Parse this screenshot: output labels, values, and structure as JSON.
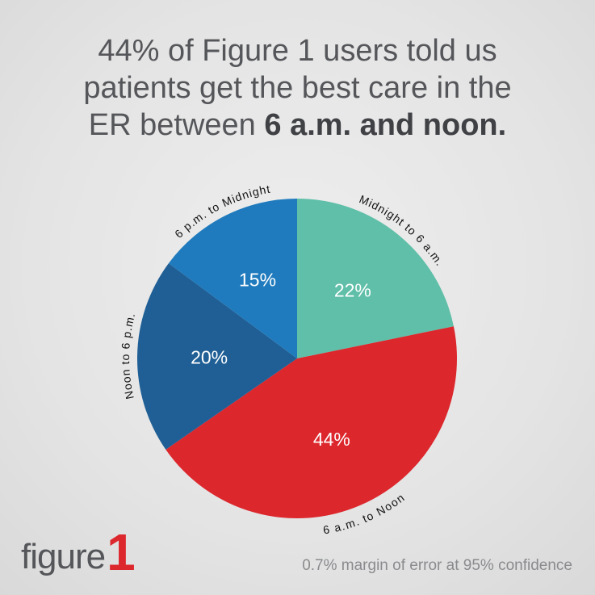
{
  "headline": {
    "line1": "44% of Figure 1 users told us",
    "line2": "patients get the best care in the",
    "line3_prefix": "ER between ",
    "line3_bold": "6 a.m. and noon."
  },
  "chart_data": {
    "type": "pie",
    "title": "44% of Figure 1 users told us patients get the best care in the ER between 6 a.m. and noon.",
    "slices": [
      {
        "label": "Midnight to 6 a.m.",
        "value": 22,
        "value_label": "22%",
        "color": "#5fbfa8"
      },
      {
        "label": "6 a.m. to Noon",
        "value": 44,
        "value_label": "44%",
        "color": "#dc272d"
      },
      {
        "label": "Noon to 6 p.m.",
        "value": 20,
        "value_label": "20%",
        "color": "#1f5f95"
      },
      {
        "label": "6 p.m. to Midnight",
        "value": 15,
        "value_label": "15%",
        "color": "#1f7bbd"
      }
    ],
    "start": "top (12 o'clock), clockwise"
  },
  "logo": {
    "word": "figure",
    "number": "1",
    "word_color": "#55565a",
    "number_color": "#dc272d"
  },
  "footnote": "0.7% margin of error at 95% confidence"
}
